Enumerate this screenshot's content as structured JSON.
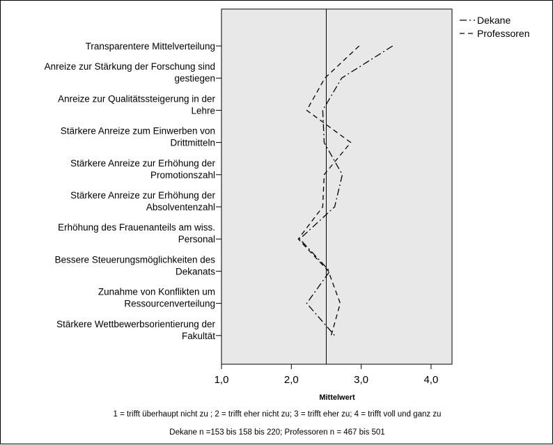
{
  "chart_data": {
    "type": "line",
    "orientation": "horizontal",
    "categories": [
      [
        "Transparentere Mittelverteilung"
      ],
      [
        "Anreize zur Stärkung der Forschung sind",
        "gestiegen"
      ],
      [
        "Anreize zur Qualitätssteigerung in der",
        "Lehre"
      ],
      [
        "Stärkere Anreize zum Einwerben von",
        "Drittmitteln"
      ],
      [
        "Stärkere Anreize zur Erhöhung der",
        "Promotionszahl"
      ],
      [
        "Stärkere Anreize zur Erhöhung der",
        "Absolventenzahl"
      ],
      [
        "Erhöhung des Frauenanteils am wiss.",
        "Personal"
      ],
      [
        "Bessere Steuerungsmöglichkeiten des",
        "Dekanats"
      ],
      [
        "Zunahme von Konflikten um",
        "Ressourcenverteilung"
      ],
      [
        "Stärkere Wettbewerbsorientierung der",
        "Fakultät"
      ]
    ],
    "series": [
      {
        "name": "Dekane",
        "dash": "dash-dot",
        "values": [
          3.45,
          2.72,
          2.45,
          2.47,
          2.73,
          2.62,
          2.12,
          2.55,
          2.22,
          2.62
        ]
      },
      {
        "name": "Professoren",
        "dash": "dash",
        "values": [
          2.97,
          2.48,
          2.22,
          2.85,
          2.47,
          2.45,
          2.1,
          2.53,
          2.7,
          2.57
        ]
      }
    ],
    "xlabel": "Mittelwert",
    "xlim": [
      1.0,
      4.3
    ],
    "xticks": [
      "1,0",
      "2,0",
      "3,0",
      "4,0"
    ],
    "xtick_values": [
      1,
      2,
      3,
      4
    ],
    "reference_line": 2.5,
    "grid": false,
    "legend_position": "top-right",
    "plot_background": "#e8e8e8",
    "line_color": "#000000"
  },
  "notes": {
    "scale": "1 = trifft überhaupt nicht zu ; 2 = trifft eher nicht zu; 3 = trifft eher zu; 4 = trifft voll und ganz zu",
    "sample": "Dekane n =153 bis 158 bis 220; Professoren n = 467 bis 501"
  }
}
